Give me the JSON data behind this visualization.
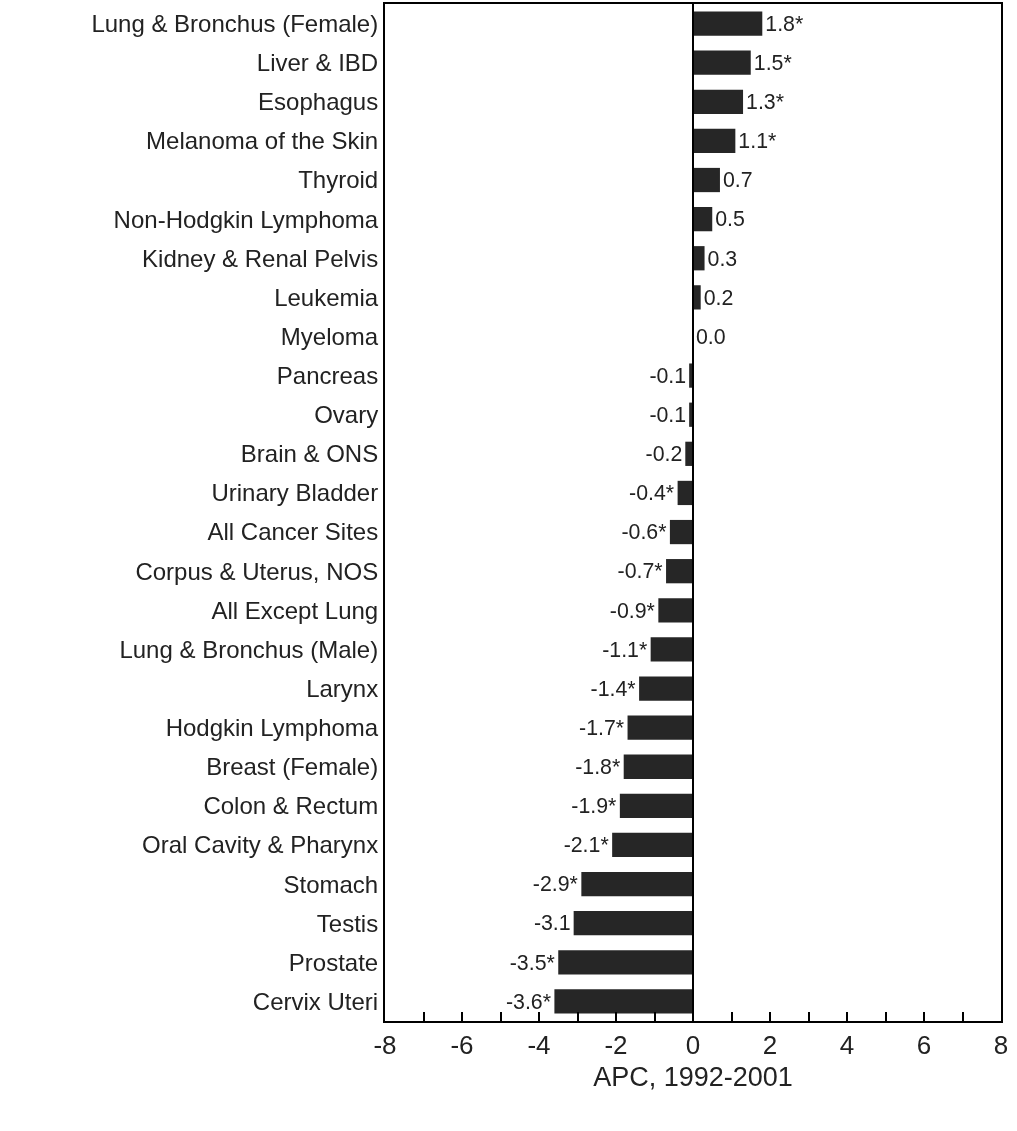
{
  "chart_data": {
    "type": "bar",
    "orientation": "horizontal",
    "xlabel": "APC, 1992-2001",
    "color": "#262626",
    "categories": [
      "Lung & Bronchus (Female)",
      "Liver & IBD",
      "Esophagus",
      "Melanoma of the Skin",
      "Thyroid",
      "Non-Hodgkin Lymphoma",
      "Kidney & Renal Pelvis",
      "Leukemia",
      "Myeloma",
      "Pancreas",
      "Ovary",
      "Brain & ONS",
      "Urinary Bladder",
      "All Cancer Sites",
      "Corpus & Uterus, NOS",
      "All Except Lung",
      "Lung & Bronchus (Male)",
      "Larynx",
      "Hodgkin Lymphoma",
      "Breast (Female)",
      "Colon & Rectum",
      "Oral Cavity & Pharynx",
      "Stomach",
      "Testis",
      "Prostate",
      "Cervix Uteri"
    ],
    "values": [
      1.8,
      1.5,
      1.3,
      1.1,
      0.7,
      0.5,
      0.3,
      0.2,
      0.0,
      -0.1,
      -0.1,
      -0.2,
      -0.4,
      -0.6,
      -0.7,
      -0.9,
      -1.1,
      -1.4,
      -1.7,
      -1.8,
      -1.9,
      -2.1,
      -2.9,
      -3.1,
      -3.5,
      -3.6
    ],
    "value_labels": [
      "1.8*",
      "1.5*",
      "1.3*",
      "1.1*",
      "0.7",
      "0.5",
      "0.3",
      "0.2",
      "0.0",
      "-0.1",
      "-0.1",
      "-0.2",
      "-0.4*",
      "-0.6*",
      "-0.7*",
      "-0.9*",
      "-1.1*",
      "-1.4*",
      "-1.7*",
      "-1.8*",
      "-1.9*",
      "-2.1*",
      "-2.9*",
      "-3.1",
      "-3.5*",
      "-3.6*"
    ],
    "xlim": [
      -8,
      8
    ],
    "xticks": [
      -8,
      {
        "value": -7,
        "label": null
      },
      -6,
      {
        "value": -5,
        "label": null
      },
      -4,
      {
        "value": -3,
        "label": null
      },
      -2,
      {
        "value": -1,
        "label": null
      },
      0,
      {
        "value": 1,
        "label": null
      },
      2,
      {
        "value": 3,
        "label": null
      },
      4,
      {
        "value": 5,
        "label": null
      },
      6,
      {
        "value": 7,
        "label": null
      },
      8
    ],
    "ref_lines": [
      {
        "axis": "x",
        "value": 0,
        "color": "#000000"
      }
    ],
    "grid": false,
    "legend": false
  }
}
